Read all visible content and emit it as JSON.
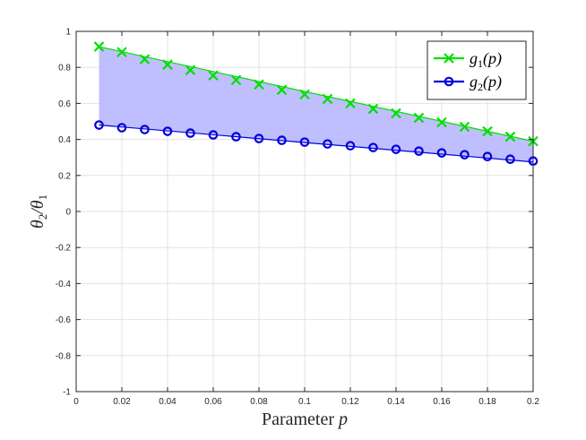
{
  "chart_data": {
    "type": "line",
    "xlabel": "Parameter p",
    "xlabel_main": "Parameter ",
    "xlabel_var": "p",
    "ylabel": "θ2/θ1",
    "xlim": [
      0,
      0.2
    ],
    "ylim": [
      -1,
      1
    ],
    "grid": true,
    "legend_position": "top-right",
    "x_ticks": [
      "0",
      "0.02",
      "0.04",
      "0.06",
      "0.08",
      "0.1",
      "0.12",
      "0.14",
      "0.16",
      "0.18",
      "0.2"
    ],
    "y_ticks": [
      "-1",
      "-0.8",
      "-0.6",
      "-0.4",
      "-0.2",
      "0",
      "0.2",
      "0.4",
      "0.6",
      "0.8",
      "1"
    ],
    "x": [
      0.01,
      0.02,
      0.03,
      0.04,
      0.05,
      0.06,
      0.07,
      0.08,
      0.09,
      0.1,
      0.11,
      0.12,
      0.13,
      0.14,
      0.15,
      0.16,
      0.17,
      0.18,
      0.19,
      0.2
    ],
    "series": [
      {
        "name": "g1(p)",
        "legend_main": "g",
        "legend_sub": "1",
        "legend_tail": "(p)",
        "color": "#00e000",
        "marker": "x",
        "line": [
          0.915,
          0.39
        ],
        "values": [
          0.915,
          0.885,
          0.845,
          0.815,
          0.785,
          0.755,
          0.73,
          0.705,
          0.675,
          0.65,
          0.625,
          0.6,
          0.57,
          0.545,
          0.52,
          0.495,
          0.47,
          0.445,
          0.415,
          0.39
        ]
      },
      {
        "name": "g2(p)",
        "legend_main": "g",
        "legend_sub": "2",
        "legend_tail": "(p)",
        "color": "#0000dd",
        "marker": "o",
        "line": [
          0.48,
          0.275
        ],
        "values": [
          0.48,
          0.465,
          0.455,
          0.445,
          0.435,
          0.425,
          0.415,
          0.405,
          0.395,
          0.385,
          0.375,
          0.365,
          0.355,
          0.345,
          0.335,
          0.325,
          0.315,
          0.305,
          0.29,
          0.28
        ]
      }
    ],
    "fill_color": "#b8b8ff"
  }
}
